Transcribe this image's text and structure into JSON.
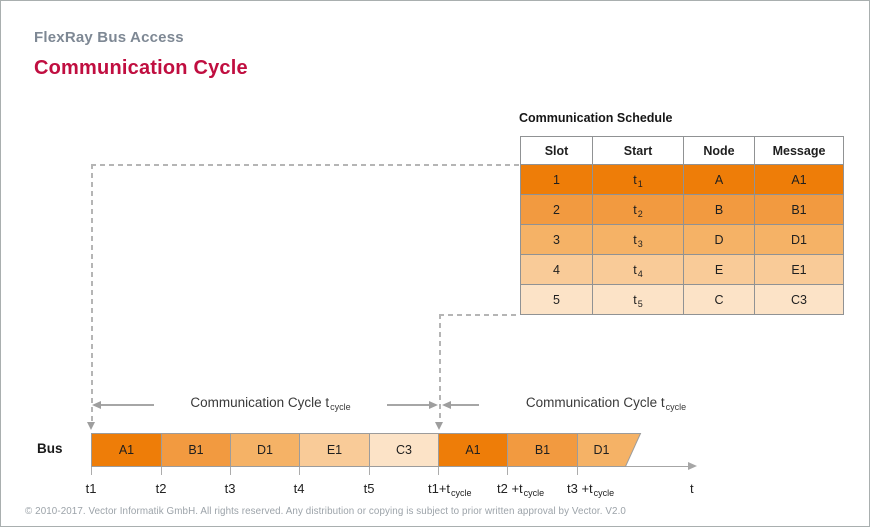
{
  "header": {
    "subtitle": "FlexRay Bus Access",
    "title": "Communication Cycle"
  },
  "schedule": {
    "title": "Communication Schedule",
    "columns": [
      "Slot",
      "Start",
      "Node",
      "Message"
    ],
    "rows": [
      {
        "slot": "1",
        "start": "t",
        "start_sub": "1",
        "node": "A",
        "message": "A1",
        "color": "#EE7D08"
      },
      {
        "slot": "2",
        "start": "t",
        "start_sub": "2",
        "node": "B",
        "message": "B1",
        "color": "#F29A40"
      },
      {
        "slot": "3",
        "start": "t",
        "start_sub": "3",
        "node": "D",
        "message": "D1",
        "color": "#F5B266"
      },
      {
        "slot": "4",
        "start": "t",
        "start_sub": "4",
        "node": "E",
        "message": "E1",
        "color": "#F9CB98"
      },
      {
        "slot": "5",
        "start": "t",
        "start_sub": "5",
        "node": "C",
        "message": "C3",
        "color": "#FCE3C7"
      }
    ]
  },
  "bus": {
    "label": "Bus",
    "cycle_labels": [
      {
        "text": "Communication Cycle t",
        "sub": "cycle"
      },
      {
        "text": "Communication Cycle t",
        "sub": "cycle"
      }
    ],
    "segments": [
      {
        "name": "A1",
        "color": "#EE7D08"
      },
      {
        "name": "B1",
        "color": "#F29A40"
      },
      {
        "name": "D1",
        "color": "#F5B266"
      },
      {
        "name": "E1",
        "color": "#F9CB98"
      },
      {
        "name": "C3",
        "color": "#FCE3C7"
      },
      {
        "name": "A1",
        "color": "#EE7D08"
      },
      {
        "name": "B1",
        "color": "#F29A40"
      },
      {
        "name": "D1",
        "color": "#F5B266",
        "slanted": true
      }
    ],
    "tick_labels": [
      {
        "text": "t1",
        "sub": ""
      },
      {
        "text": "t2",
        "sub": ""
      },
      {
        "text": "t3",
        "sub": ""
      },
      {
        "text": "t4",
        "sub": ""
      },
      {
        "text": "t5",
        "sub": ""
      },
      {
        "text": "t1+t",
        "sub": "cycle"
      },
      {
        "text": "t2 +t",
        "sub": "cycle"
      },
      {
        "text": "t3 +t",
        "sub": "cycle"
      }
    ],
    "axis_label": "t"
  },
  "footer": {
    "copyright": "© 2010-2017. Vector Informatik GmbH. All rights reserved. Any distribution or copying is subject to prior written approval by Vector. V2.0"
  },
  "colors": {
    "accent_red": "#C00E40",
    "subtitle_gray": "#7E8894",
    "table_border_gray": "#909294",
    "line_gray": "#A6A6A6",
    "dash_gray": "#B5B5B5"
  }
}
